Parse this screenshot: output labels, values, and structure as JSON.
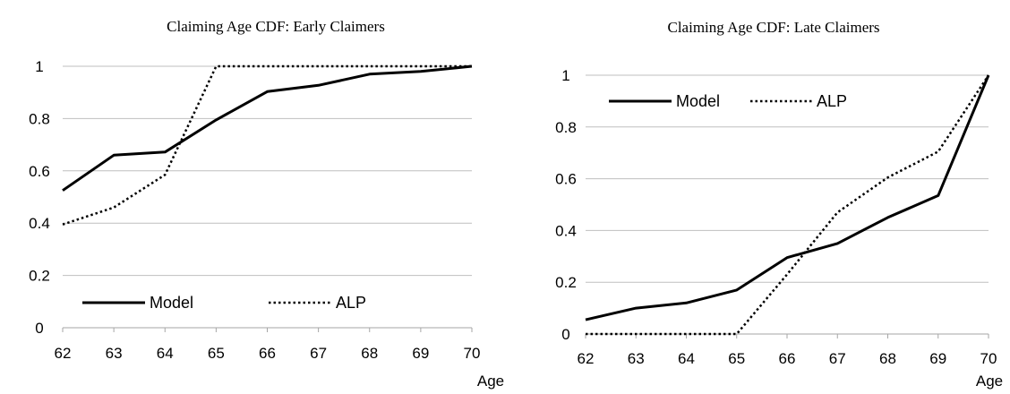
{
  "chart_data": [
    {
      "type": "line",
      "title": "Claiming Age CDF: Early Claimers",
      "xlabel": "Age",
      "ylabel": "",
      "x": [
        62,
        63,
        64,
        65,
        66,
        67,
        68,
        69,
        70
      ],
      "xlim": [
        62,
        70
      ],
      "ylim": [
        0,
        1
      ],
      "yticks": [
        "0",
        "0.2",
        "0.4",
        "0.6",
        "0.8",
        "1"
      ],
      "grid": "horizontal",
      "legend": "bottom-left",
      "series": [
        {
          "name": "Model",
          "style": "solid",
          "points": [
            [
              62,
              0.525
            ],
            [
              63,
              0.66
            ],
            [
              64,
              0.672
            ],
            [
              65,
              0.795
            ],
            [
              66,
              0.903
            ],
            [
              67,
              0.927
            ],
            [
              68,
              0.97
            ],
            [
              69,
              0.98
            ],
            [
              70,
              1.0
            ]
          ]
        },
        {
          "name": "ALP",
          "style": "dotted",
          "points": [
            [
              62,
              0.395
            ],
            [
              63,
              0.46
            ],
            [
              64,
              0.585
            ],
            [
              65,
              1.0
            ],
            [
              66,
              1.0
            ],
            [
              67,
              1.0
            ],
            [
              68,
              1.0
            ],
            [
              69,
              1.0
            ],
            [
              70,
              1.0
            ]
          ]
        }
      ]
    },
    {
      "type": "line",
      "title": "Claiming Age CDF: Late Claimers",
      "xlabel": "Age",
      "ylabel": "",
      "x": [
        62,
        63,
        64,
        65,
        66,
        67,
        68,
        69,
        70
      ],
      "xlim": [
        62,
        70
      ],
      "ylim": [
        0,
        1
      ],
      "yticks": [
        "0",
        "0.2",
        "0.4",
        "0.6",
        "0.8",
        "1"
      ],
      "grid": "horizontal",
      "legend": "top-left",
      "series": [
        {
          "name": "Model",
          "style": "solid",
          "points": [
            [
              62,
              0.055
            ],
            [
              63,
              0.1
            ],
            [
              64,
              0.12
            ],
            [
              65,
              0.17
            ],
            [
              66,
              0.295
            ],
            [
              67,
              0.35
            ],
            [
              68,
              0.45
            ],
            [
              69,
              0.535
            ],
            [
              70,
              1.0
            ]
          ]
        },
        {
          "name": "ALP",
          "style": "dotted",
          "points": [
            [
              62,
              0.0
            ],
            [
              63,
              0.0
            ],
            [
              64,
              0.0
            ],
            [
              65,
              0.0
            ],
            [
              66,
              0.23
            ],
            [
              67,
              0.47
            ],
            [
              68,
              0.605
            ],
            [
              69,
              0.705
            ],
            [
              70,
              1.0
            ]
          ]
        }
      ]
    }
  ]
}
